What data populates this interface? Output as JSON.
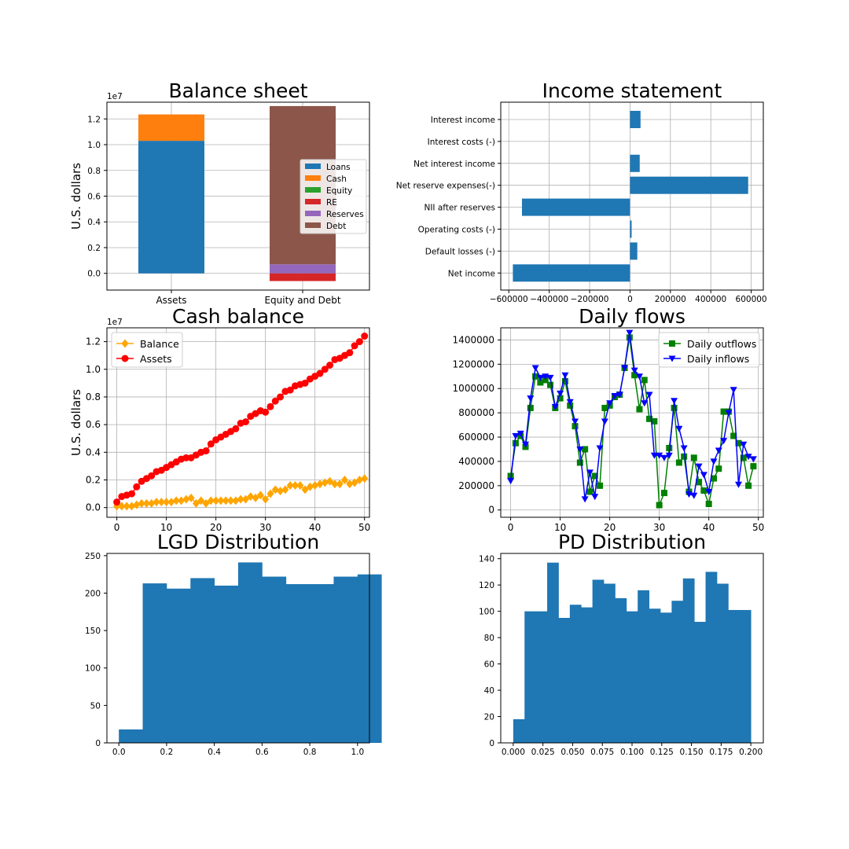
{
  "colors": {
    "c_blue": "#1f77b4",
    "c_orange": "#ff7f0e",
    "c_green": "#2ca02c",
    "c_red": "#d62728",
    "c_purple": "#9467bd",
    "c_brown": "#8c564b",
    "balance_line": "#ffa500",
    "assets_line": "#ff0000",
    "outflows_line": "#008000",
    "inflows_line": "#0000ff"
  },
  "chart_data": [
    {
      "id": "balance",
      "type": "bar",
      "stacked": true,
      "title": "Balance sheet",
      "ylabel": "U.S. dollars",
      "exponent": "1e7",
      "categories": [
        "Assets",
        "Equity and Debt"
      ],
      "ylim": [
        -0.13,
        1.33
      ],
      "yticks": [
        "0.0",
        "0.2",
        "0.4",
        "0.6",
        "0.8",
        "1.0",
        "1.2"
      ],
      "legend_position": "center-right",
      "series": [
        {
          "name": "Loans",
          "values": [
            1.03,
            0
          ]
        },
        {
          "name": "Cash",
          "values": [
            0.205,
            0
          ]
        },
        {
          "name": "Equity",
          "values": [
            0,
            0
          ]
        },
        {
          "name": "RE",
          "values": [
            0,
            -0.06
          ]
        },
        {
          "name": "Reserves",
          "values": [
            0,
            0.07
          ]
        },
        {
          "name": "Debt",
          "values": [
            0,
            1.23
          ]
        }
      ]
    },
    {
      "id": "income",
      "type": "bar",
      "orientation": "horizontal",
      "title": "Income statement",
      "categories": [
        "Interest income",
        "Interest costs (-)",
        "Net interest income",
        "Net reserve expenses(-)",
        "NII after reserves",
        "Operating costs (-)",
        "Default losses (-)",
        "Net income"
      ],
      "values": [
        52000,
        0,
        48000,
        585000,
        -535000,
        8000,
        36000,
        -580000
      ],
      "xlim": [
        -640000,
        660000
      ],
      "xticks": [
        "−600000",
        "−400000",
        "−200000",
        "0",
        "200000",
        "400000",
        "600000"
      ]
    },
    {
      "id": "cash",
      "type": "line",
      "title": "Cash balance",
      "ylabel": "U.S. dollars",
      "exponent": "1e7",
      "xlim": [
        -2,
        51
      ],
      "ylim": [
        -0.07,
        1.3
      ],
      "xticks": [
        "0",
        "10",
        "20",
        "30",
        "40",
        "50"
      ],
      "yticks": [
        "0.0",
        "0.2",
        "0.4",
        "0.6",
        "0.8",
        "1.0",
        "1.2"
      ],
      "legend_position": "top-left",
      "series": [
        {
          "name": "Balance",
          "marker": "diamond",
          "values": [
            0.01,
            0.01,
            0.01,
            0.01,
            0.02,
            0.03,
            0.03,
            0.03,
            0.04,
            0.04,
            0.04,
            0.04,
            0.05,
            0.05,
            0.06,
            0.07,
            0.03,
            0.05,
            0.03,
            0.05,
            0.05,
            0.05,
            0.05,
            0.05,
            0.05,
            0.06,
            0.06,
            0.08,
            0.07,
            0.09,
            0.06,
            0.1,
            0.13,
            0.12,
            0.13,
            0.16,
            0.16,
            0.16,
            0.13,
            0.15,
            0.16,
            0.17,
            0.18,
            0.19,
            0.17,
            0.17,
            0.2,
            0.17,
            0.18,
            0.2,
            0.21
          ]
        },
        {
          "name": "Assets",
          "marker": "circle",
          "values": [
            0.04,
            0.08,
            0.09,
            0.1,
            0.15,
            0.19,
            0.21,
            0.23,
            0.26,
            0.27,
            0.29,
            0.31,
            0.33,
            0.35,
            0.36,
            0.36,
            0.38,
            0.4,
            0.41,
            0.46,
            0.49,
            0.51,
            0.53,
            0.55,
            0.57,
            0.61,
            0.62,
            0.66,
            0.68,
            0.7,
            0.69,
            0.73,
            0.77,
            0.8,
            0.84,
            0.85,
            0.88,
            0.89,
            0.9,
            0.93,
            0.95,
            0.97,
            1.0,
            1.03,
            1.07,
            1.08,
            1.1,
            1.12,
            1.17,
            1.2,
            1.24
          ]
        }
      ]
    },
    {
      "id": "flows",
      "type": "line",
      "title": "Daily flows",
      "xlim": [
        -2,
        51
      ],
      "ylim": [
        -60000,
        1500000
      ],
      "xticks": [
        "0",
        "10",
        "20",
        "30",
        "40",
        "50"
      ],
      "yticks": [
        "0",
        "200000",
        "400000",
        "600000",
        "800000",
        "1000000",
        "1200000",
        "1400000"
      ],
      "legend_position": "top-right",
      "series": [
        {
          "name": "Daily outflows",
          "marker": "square",
          "values": [
            280000,
            550000,
            610000,
            520000,
            840000,
            1100000,
            1050000,
            1070000,
            1030000,
            840000,
            920000,
            1060000,
            860000,
            690000,
            390000,
            500000,
            150000,
            280000,
            200000,
            840000,
            860000,
            930000,
            950000,
            1170000,
            1420000,
            1110000,
            830000,
            1070000,
            750000,
            730000,
            40000,
            140000,
            510000,
            840000,
            390000,
            440000,
            150000,
            430000,
            230000,
            160000,
            50000,
            260000,
            340000,
            810000,
            810000,
            610000,
            550000,
            430000,
            200000,
            360000
          ]
        },
        {
          "name": "Daily inflows",
          "marker": "triangle-down",
          "values": [
            240000,
            610000,
            630000,
            540000,
            920000,
            1170000,
            1090000,
            1100000,
            1090000,
            850000,
            960000,
            1110000,
            890000,
            730000,
            500000,
            90000,
            310000,
            110000,
            510000,
            730000,
            880000,
            940000,
            950000,
            1170000,
            1460000,
            1150000,
            1100000,
            880000,
            950000,
            450000,
            450000,
            430000,
            450000,
            900000,
            670000,
            510000,
            130000,
            120000,
            360000,
            290000,
            150000,
            400000,
            490000,
            570000,
            800000,
            990000,
            210000,
            540000,
            440000,
            420000
          ]
        }
      ]
    },
    {
      "id": "lgd",
      "type": "bar",
      "subtype": "histogram",
      "title": "LGD Distribution",
      "bins": [
        0,
        0.1,
        0.2,
        0.3,
        0.4,
        0.5,
        0.6,
        0.7,
        0.8,
        0.9,
        1.0
      ],
      "values": [
        18,
        213,
        206,
        220,
        210,
        241,
        222,
        212,
        212,
        222,
        225
      ],
      "xlim": [
        -0.05,
        1.05
      ],
      "ylim": [
        0,
        253
      ],
      "xticks": [
        "0.0",
        "0.2",
        "0.4",
        "0.6",
        "0.8",
        "1.0"
      ],
      "yticks": [
        "0",
        "50",
        "100",
        "150",
        "200",
        "250"
      ]
    },
    {
      "id": "pd",
      "type": "bar",
      "subtype": "histogram",
      "title": "PD Distribution",
      "values": [
        18,
        100,
        100,
        137,
        95,
        105,
        103,
        124,
        121,
        110,
        100,
        116,
        102,
        99,
        108,
        125,
        92,
        130,
        121,
        101,
        101
      ],
      "xlim": [
        -0.0105,
        0.2105
      ],
      "ylim": [
        0,
        144
      ],
      "xticks": [
        "0.000",
        "0.025",
        "0.050",
        "0.075",
        "0.100",
        "0.125",
        "0.150",
        "0.175",
        "0.200"
      ],
      "yticks": [
        "0",
        "20",
        "40",
        "60",
        "80",
        "100",
        "120",
        "140"
      ]
    }
  ]
}
